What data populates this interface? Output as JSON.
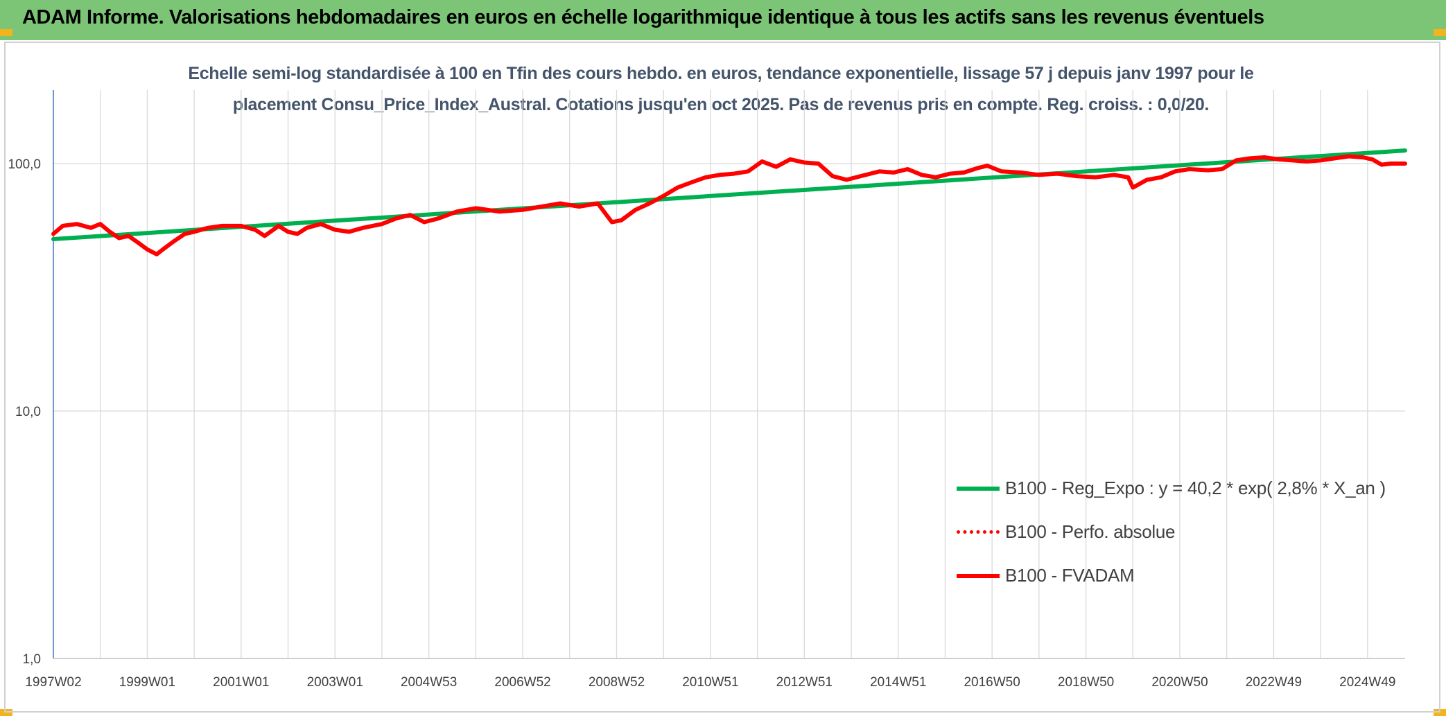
{
  "header": {
    "title": "ADAM Informe. Valorisations hebdomadaires en euros en échelle logarithmique identique à tous les actifs sans les revenus éventuels",
    "background_color": "#7cc576",
    "corner_color": "#f2b41c"
  },
  "chart_data": {
    "type": "line",
    "title": "Echelle semi-log standardisée à 100 en Tfin des cours hebdo. en euros, tendance exponentielle, lissage 57 j depuis janv 1997 pour le placement Consu_Price_Index_Austral. Cotations jusqu'en oct 2025. Pas de revenus pris en compte. Reg. croiss. : 0,0/20.",
    "title_lines": [
      "Echelle semi-log standardisée à 100 en Tfin des cours hebdo. en euros, tendance exponentielle, lissage 57 j depuis janv 1997 pour le",
      "placement Consu_Price_Index_Austral. Cotations jusqu'en oct 2025. Pas de revenus pris en compte. Reg. croiss. : 0,0/20."
    ],
    "yscale": "log",
    "ylim": [
      1,
      200
    ],
    "y_ticks": [
      {
        "value": 1,
        "label": "1,0"
      },
      {
        "value": 10,
        "label": "10,0"
      },
      {
        "value": 100,
        "label": "100,0"
      }
    ],
    "xlim": [
      1997.0,
      2025.8
    ],
    "x_ticks": [
      {
        "pos": 1997.0,
        "label": "1997W02"
      },
      {
        "pos": 1999.0,
        "label": "1999W01"
      },
      {
        "pos": 2001.0,
        "label": "2001W01"
      },
      {
        "pos": 2003.0,
        "label": "2003W01"
      },
      {
        "pos": 2005.0,
        "label": "2004W53"
      },
      {
        "pos": 2007.0,
        "label": "2006W52"
      },
      {
        "pos": 2009.0,
        "label": "2008W52"
      },
      {
        "pos": 2011.0,
        "label": "2010W51"
      },
      {
        "pos": 2013.0,
        "label": "2012W51"
      },
      {
        "pos": 2015.0,
        "label": "2014W51"
      },
      {
        "pos": 2017.0,
        "label": "2016W50"
      },
      {
        "pos": 2019.0,
        "label": "2018W50"
      },
      {
        "pos": 2021.0,
        "label": "2020W50"
      },
      {
        "pos": 2023.0,
        "label": "2022W49"
      },
      {
        "pos": 2025.0,
        "label": "2024W49"
      }
    ],
    "minor_gridlines_per_major": 2,
    "legend_position": "bottom-right",
    "series": [
      {
        "name": "B100 - Reg_Expo : y = 40,2 * exp( 2,8% *  X_an )",
        "color": "#00b050",
        "style": "solid",
        "points": [
          [
            1997.0,
            49.5
          ],
          [
            2025.8,
            113
          ]
        ]
      },
      {
        "name": "B100 - Perfo. absolue",
        "color": "#ff0000",
        "style": "dotted",
        "points": []
      },
      {
        "name": "B100 - FVADAM",
        "color": "#ff0000",
        "style": "solid",
        "points": [
          [
            1997.0,
            52
          ],
          [
            1997.2,
            56
          ],
          [
            1997.5,
            57
          ],
          [
            1997.8,
            55
          ],
          [
            1998.0,
            57
          ],
          [
            1998.2,
            53
          ],
          [
            1998.4,
            50
          ],
          [
            1998.6,
            51
          ],
          [
            1998.8,
            48
          ],
          [
            1999.0,
            45
          ],
          [
            1999.2,
            43
          ],
          [
            1999.4,
            46
          ],
          [
            1999.6,
            49
          ],
          [
            1999.8,
            52
          ],
          [
            2000.0,
            53
          ],
          [
            2000.3,
            55
          ],
          [
            2000.6,
            56
          ],
          [
            2001.0,
            56
          ],
          [
            2001.3,
            54
          ],
          [
            2001.5,
            51
          ],
          [
            2001.8,
            56
          ],
          [
            2002.0,
            53
          ],
          [
            2002.2,
            52
          ],
          [
            2002.4,
            55
          ],
          [
            2002.7,
            57
          ],
          [
            2003.0,
            54
          ],
          [
            2003.3,
            53
          ],
          [
            2003.6,
            55
          ],
          [
            2004.0,
            57
          ],
          [
            2004.3,
            60
          ],
          [
            2004.6,
            62
          ],
          [
            2004.9,
            58
          ],
          [
            2005.2,
            60
          ],
          [
            2005.6,
            64
          ],
          [
            2006.0,
            66
          ],
          [
            2006.5,
            64
          ],
          [
            2007.0,
            65
          ],
          [
            2007.4,
            67
          ],
          [
            2007.8,
            69
          ],
          [
            2008.2,
            67
          ],
          [
            2008.6,
            69
          ],
          [
            2008.9,
            58
          ],
          [
            2009.1,
            59
          ],
          [
            2009.4,
            65
          ],
          [
            2009.7,
            69
          ],
          [
            2010.0,
            74
          ],
          [
            2010.3,
            80
          ],
          [
            2010.6,
            84
          ],
          [
            2010.9,
            88
          ],
          [
            2011.2,
            90
          ],
          [
            2011.5,
            91
          ],
          [
            2011.8,
            93
          ],
          [
            2012.1,
            102
          ],
          [
            2012.4,
            97
          ],
          [
            2012.7,
            104
          ],
          [
            2013.0,
            101
          ],
          [
            2013.3,
            100
          ],
          [
            2013.6,
            89
          ],
          [
            2013.9,
            86
          ],
          [
            2014.2,
            89
          ],
          [
            2014.6,
            93
          ],
          [
            2014.9,
            92
          ],
          [
            2015.2,
            95
          ],
          [
            2015.5,
            90
          ],
          [
            2015.8,
            88
          ],
          [
            2016.1,
            91
          ],
          [
            2016.4,
            92
          ],
          [
            2016.7,
            96
          ],
          [
            2016.9,
            98
          ],
          [
            2017.2,
            93
          ],
          [
            2017.6,
            92
          ],
          [
            2018.0,
            90
          ],
          [
            2018.4,
            91
          ],
          [
            2018.8,
            89
          ],
          [
            2019.2,
            88
          ],
          [
            2019.6,
            90
          ],
          [
            2019.9,
            88
          ],
          [
            2020.0,
            80
          ],
          [
            2020.3,
            86
          ],
          [
            2020.6,
            88
          ],
          [
            2020.9,
            93
          ],
          [
            2021.2,
            95
          ],
          [
            2021.6,
            94
          ],
          [
            2021.9,
            95
          ],
          [
            2022.2,
            103
          ],
          [
            2022.5,
            105
          ],
          [
            2022.8,
            106
          ],
          [
            2023.1,
            104
          ],
          [
            2023.4,
            103
          ],
          [
            2023.7,
            102
          ],
          [
            2024.0,
            103
          ],
          [
            2024.3,
            105
          ],
          [
            2024.6,
            107
          ],
          [
            2024.9,
            106
          ],
          [
            2025.1,
            104
          ],
          [
            2025.3,
            99
          ],
          [
            2025.5,
            100
          ],
          [
            2025.8,
            100
          ]
        ]
      }
    ]
  }
}
